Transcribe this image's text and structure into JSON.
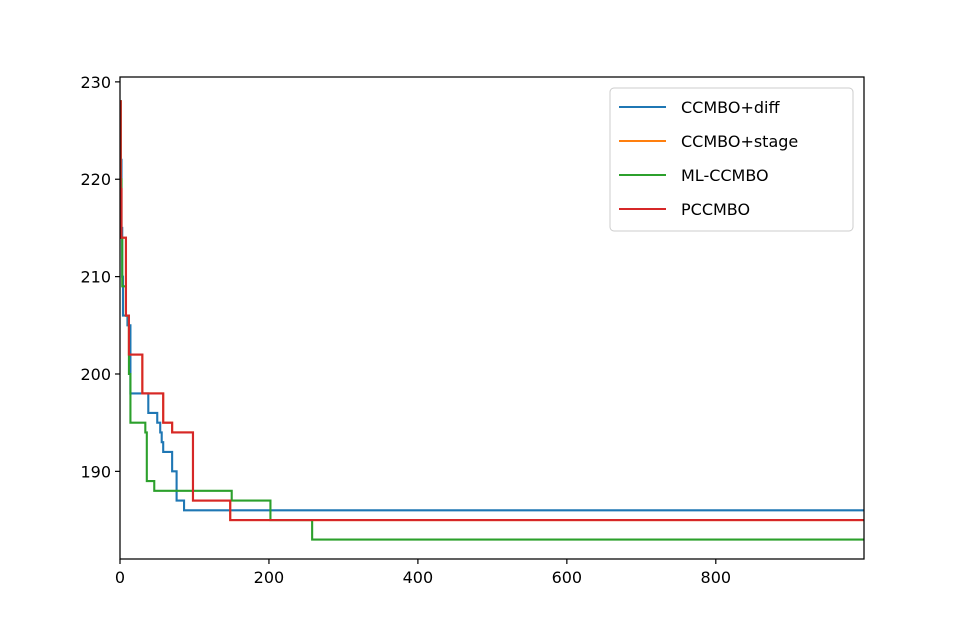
{
  "chart_data": {
    "type": "line",
    "title": "",
    "xlabel": "",
    "ylabel": "",
    "xlim": [
      0,
      999
    ],
    "ylim": [
      181,
      230.5
    ],
    "grid": false,
    "legend_position": "top-right",
    "x_ticks": [
      {
        "value": 0,
        "label": "0"
      },
      {
        "value": 200,
        "label": "200"
      },
      {
        "value": 400,
        "label": "400"
      },
      {
        "value": 600,
        "label": "600"
      },
      {
        "value": 800,
        "label": "800"
      }
    ],
    "y_ticks": [
      {
        "value": 190,
        "label": "190"
      },
      {
        "value": 200,
        "label": "200"
      },
      {
        "value": 210,
        "label": "210"
      },
      {
        "value": 220,
        "label": "220"
      },
      {
        "value": 230,
        "label": "230"
      }
    ],
    "series": [
      {
        "name": "CCMBO+diff",
        "color": "#1f77b4",
        "step": true,
        "x": [
          0,
          1,
          2,
          3,
          4,
          6,
          10,
          14,
          38,
          50,
          54,
          56,
          58,
          62,
          70,
          76,
          80,
          86,
          999
        ],
        "y": [
          228,
          222,
          215,
          210,
          206,
          206,
          205,
          198,
          196,
          195,
          194,
          193,
          192,
          192,
          190,
          187,
          187,
          186,
          186
        ]
      },
      {
        "name": "CCMBO+stage",
        "color": "#ff7f0e",
        "step": true,
        "x": [
          0,
          1,
          2,
          4,
          8,
          12,
          30,
          58,
          64,
          70,
          98,
          100,
          148,
          150,
          999
        ],
        "y": [
          228,
          219,
          214,
          214,
          206,
          202,
          198,
          195,
          195,
          194,
          187,
          187,
          185,
          185,
          185
        ]
      },
      {
        "name": "ML-CCMBO",
        "color": "#2ca02c",
        "step": true,
        "x": [
          0,
          1,
          2,
          3,
          8,
          12,
          14,
          32,
          34,
          36,
          42,
          46,
          144,
          150,
          200,
          202,
          256,
          258,
          999
        ],
        "y": [
          228,
          220,
          214,
          209,
          206,
          200,
          195,
          195,
          194,
          189,
          189,
          188,
          188,
          187,
          187,
          185,
          185,
          183,
          183
        ]
      },
      {
        "name": "PCCMBO",
        "color": "#d62728",
        "step": true,
        "x": [
          0,
          1,
          2,
          4,
          8,
          12,
          30,
          58,
          64,
          70,
          98,
          100,
          148,
          150,
          999
        ],
        "y": [
          228,
          219,
          214,
          214,
          206,
          202,
          198,
          195,
          195,
          194,
          187,
          187,
          185,
          185,
          185
        ]
      }
    ]
  }
}
